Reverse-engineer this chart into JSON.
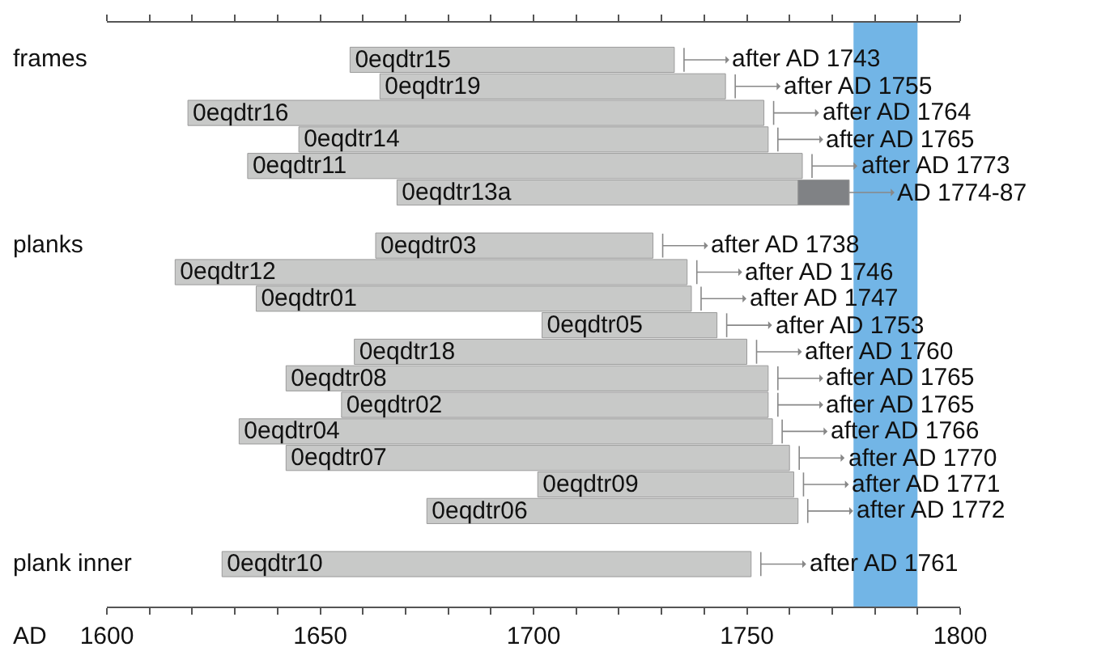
{
  "chart_data": {
    "type": "bar",
    "orientation": "horizontal",
    "xlabel": "AD",
    "categories": [
      "0eqdtr15",
      "0eqdtr19",
      "0eqdtr16",
      "0eqdtr14",
      "0eqdtr11",
      "0eqdtr13a",
      null,
      "0eqdtr03",
      "0eqdtr12",
      "0eqdtr01",
      "0eqdtr05",
      "0eqdtr18",
      "0eqdtr08",
      "0eqdtr02",
      "0eqdtr04",
      "0eqdtr07",
      "0eqdtr09",
      "0eqdtr06",
      null,
      "0eqdtr10"
    ],
    "series": [
      {
        "color": "#c8c9c8",
        "base": [
          1657,
          1664,
          1619,
          1645,
          1633,
          1668,
          null,
          1663,
          1616,
          1635,
          1702,
          1658,
          1642,
          1655,
          1631,
          1642,
          1701,
          1675,
          null,
          1627
        ],
        "values": [
          76,
          81,
          135,
          110,
          130,
          94,
          null,
          65,
          120,
          102,
          41,
          92,
          113,
          100,
          125,
          118,
          60,
          87,
          null,
          124
        ],
        "value_labels": [
          "after AD 1743",
          "after AD 1755",
          "after AD 1764",
          "after AD 1765",
          "after AD 1773",
          null,
          null,
          "after AD 1738",
          "after AD 1746",
          "after AD 1747",
          "after AD 1753",
          "after AD 1760",
          "after AD 1765",
          "after AD 1765",
          "after AD 1766",
          "after AD 1770",
          "after AD 1771",
          "after AD 1772",
          null,
          "after AD 1761"
        ]
      },
      {
        "color": "#808285",
        "base": [
          null,
          null,
          null,
          null,
          null,
          1762,
          null,
          null,
          null,
          null,
          null,
          null,
          null,
          null,
          null,
          null,
          null,
          null,
          null,
          null
        ],
        "values": [
          null,
          null,
          null,
          null,
          null,
          12,
          null,
          null,
          null,
          null,
          null,
          null,
          null,
          null,
          null,
          null,
          null,
          null,
          null,
          null
        ],
        "value_labels": [
          null,
          null,
          null,
          null,
          null,
          "AD 1774-87",
          null,
          null,
          null,
          null,
          null,
          null,
          null,
          null,
          null,
          null,
          null,
          null,
          null,
          null
        ]
      }
    ],
    "xlim": [
      1600,
      1800
    ],
    "xticks": [
      1600,
      {
        "value": 1610,
        "label": null
      },
      {
        "value": 1620,
        "label": null
      },
      {
        "value": 1630,
        "label": null
      },
      {
        "value": 1640,
        "label": null
      },
      1650,
      {
        "value": 1660,
        "label": null
      },
      {
        "value": 1670,
        "label": null
      },
      {
        "value": 1680,
        "label": null
      },
      {
        "value": 1690,
        "label": null
      },
      1700,
      {
        "value": 1710,
        "label": null
      },
      {
        "value": 1720,
        "label": null
      },
      {
        "value": 1730,
        "label": null
      },
      {
        "value": 1740,
        "label": null
      },
      1750,
      {
        "value": 1760,
        "label": null
      },
      {
        "value": 1770,
        "label": null
      },
      {
        "value": 1780,
        "label": null
      },
      {
        "value": 1790,
        "label": null
      },
      1800
    ],
    "tick_labels": "x",
    "grid": false,
    "bands": [
      {
        "axis": "x",
        "from": 1775,
        "to": 1790,
        "color": "#72b5e6"
      }
    ],
    "annotations": [
      "frames",
      "planks",
      "plank inner"
    ]
  }
}
